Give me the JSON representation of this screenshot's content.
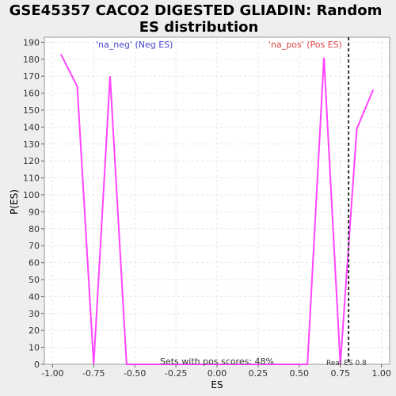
{
  "chart_data": {
    "type": "line",
    "title_line1": "GSE45357 CACO2 DIGESTED GLIADIN: Random",
    "title_line2": "ES distribution",
    "xlabel": "ES",
    "ylabel": "P(ES)",
    "xlim": [
      -1.05,
      1.05
    ],
    "ylim": [
      0,
      193
    ],
    "x_ticks": [
      -1.0,
      -0.75,
      -0.5,
      -0.25,
      0.0,
      0.25,
      0.5,
      0.75,
      1.0
    ],
    "x_tick_labels": [
      "-1.00",
      "-0.75",
      "-0.50",
      "-0.25",
      "0.00",
      "0.25",
      "0.50",
      "0.75",
      "1.00"
    ],
    "y_ticks": [
      0,
      10,
      20,
      30,
      40,
      50,
      60,
      70,
      80,
      90,
      100,
      110,
      120,
      130,
      140,
      150,
      160,
      170,
      180,
      190
    ],
    "y_tick_labels": [
      "0",
      "10",
      "20",
      "30",
      "40",
      "50",
      "60",
      "70",
      "80",
      "90",
      "100",
      "110",
      "120",
      "130",
      "140",
      "150",
      "160",
      "170",
      "180",
      "190"
    ],
    "grid": true,
    "series": [
      {
        "color": "#ff44ff",
        "x": [
          -0.95,
          -0.85,
          -0.75,
          -0.65,
          -0.55,
          -0.45,
          -0.35,
          -0.25,
          -0.15,
          -0.05,
          0.05,
          0.15,
          0.25,
          0.35,
          0.45,
          0.55,
          0.65,
          0.75,
          0.85,
          0.95
        ],
        "y": [
          183,
          164,
          0,
          170,
          0,
          0,
          0,
          0,
          0,
          0,
          0,
          0,
          0,
          0,
          0,
          0,
          181,
          0,
          139,
          162
        ]
      }
    ],
    "real_es": 0.8,
    "real_es_label": "Real ES 0.8",
    "neg_label": "'na_neg' (Neg ES)",
    "neg_color": "#4444cc",
    "pos_label": "'na_pos' (Pos ES)",
    "pos_color": "#dd4444",
    "footer_text": "Sets with pos scores: 48%"
  }
}
